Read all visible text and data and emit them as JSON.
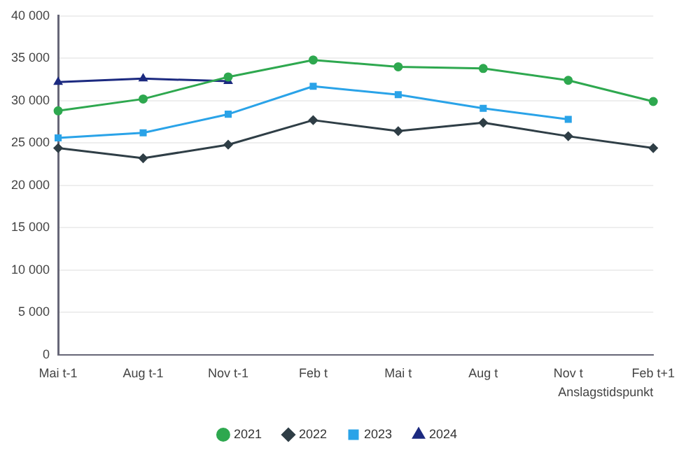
{
  "chart_data": {
    "type": "line",
    "xlabel": "Anslagstidspunkt",
    "categories": [
      "Mai t-1",
      "Aug t-1",
      "Nov t-1",
      "Feb t",
      "Mai t",
      "Aug t",
      "Nov t",
      "Feb t+1"
    ],
    "series": [
      {
        "name": "2021",
        "color": "#2ea84f",
        "marker": "circle",
        "values": [
          28800,
          30200,
          32800,
          34800,
          34000,
          33800,
          32400,
          29900
        ]
      },
      {
        "name": "2022",
        "color": "#2f3e46",
        "marker": "diamond",
        "values": [
          24400,
          23200,
          24800,
          27700,
          26400,
          27400,
          25800,
          24400
        ]
      },
      {
        "name": "2023",
        "color": "#2aa3e8",
        "marker": "square",
        "values": [
          25600,
          26200,
          28400,
          31700,
          30700,
          29100,
          27800,
          null
        ]
      },
      {
        "name": "2024",
        "color": "#1c2a80",
        "marker": "triangle",
        "values": [
          32200,
          32600,
          32300,
          null,
          null,
          null,
          null,
          null
        ]
      }
    ],
    "ylim": [
      0,
      40000
    ],
    "yticks": [
      {
        "value": 0,
        "label": "0"
      },
      {
        "value": 5000,
        "label": "5 000"
      },
      {
        "value": 10000,
        "label": "10 000"
      },
      {
        "value": 15000,
        "label": "15 000"
      },
      {
        "value": 20000,
        "label": "20 000"
      },
      {
        "value": 25000,
        "label": "25 000"
      },
      {
        "value": 30000,
        "label": "30 000"
      },
      {
        "value": 35000,
        "label": "35 000"
      },
      {
        "value": 40000,
        "label": "40 000"
      }
    ],
    "grid": "y",
    "legend": "bottom",
    "line_style": "solid"
  }
}
